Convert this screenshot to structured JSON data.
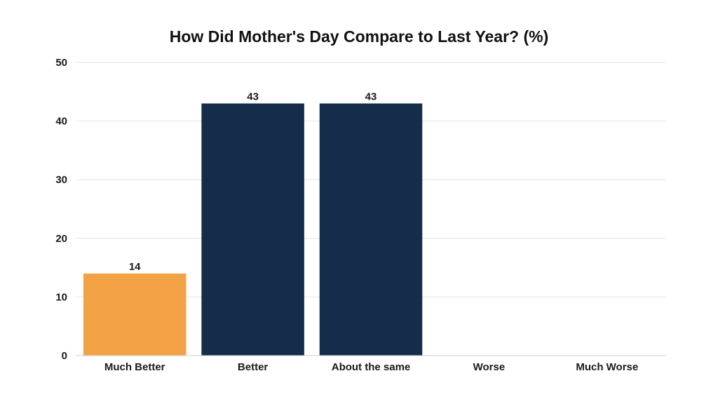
{
  "chart_data": {
    "type": "bar",
    "title": "How Did Mother's Day Compare to Last Year? (%)",
    "xlabel": "",
    "ylabel": "",
    "categories": [
      "Much Better",
      "Better",
      "About the same",
      "Worse",
      "Much Worse"
    ],
    "values": [
      14,
      43,
      43,
      0,
      0
    ],
    "data_labels": [
      "14",
      "43",
      "43",
      "",
      ""
    ],
    "bar_colors": [
      "#F2A245",
      "#152C4B",
      "#152C4B",
      "#152C4B",
      "#152C4B"
    ],
    "ylim": [
      0,
      50
    ],
    "yticks": [
      0,
      10,
      20,
      30,
      40,
      50
    ],
    "grid": true,
    "legend": "none"
  }
}
